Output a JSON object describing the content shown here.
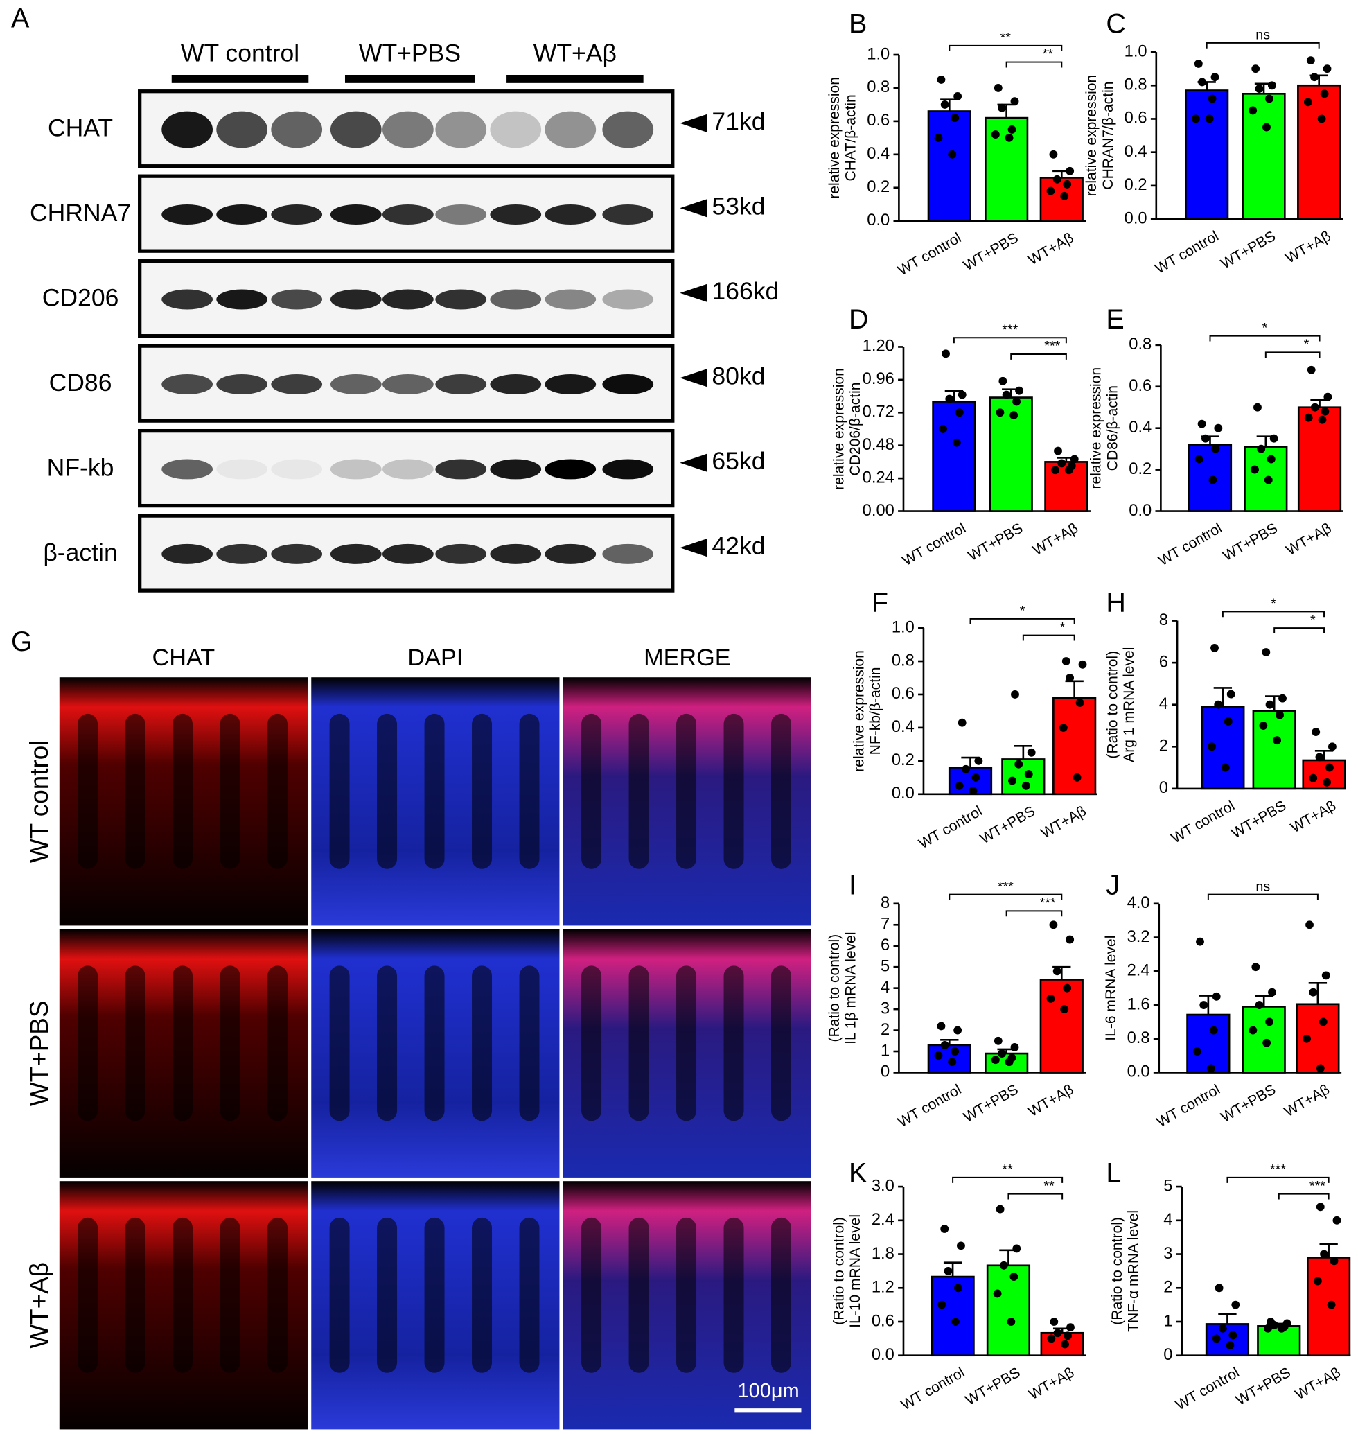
{
  "blot": {
    "label": "A",
    "groups": [
      "WT control",
      "WT+PBS",
      "WT+Aβ"
    ],
    "proteins": [
      {
        "name": "CHAT",
        "size": "71kd"
      },
      {
        "name": "CHRNA7",
        "size": "53kd"
      },
      {
        "name": "CD206",
        "size": "166kd"
      },
      {
        "name": "CD86",
        "size": "80kd"
      },
      {
        "name": "NF-kb",
        "size": "65kd"
      },
      {
        "name": "β-actin",
        "size": "42kd"
      }
    ]
  },
  "images": {
    "label": "G",
    "columns": [
      "CHAT",
      "DAPI",
      "MERGE"
    ],
    "rows": [
      "WT control",
      "WT+PBS",
      "WT+Aβ"
    ],
    "scale_bar": "100μm"
  },
  "chart_data": [
    {
      "type": "bar",
      "label": "B",
      "ylabel": [
        "CHAT/β-actin",
        "relative expression"
      ],
      "categories": [
        "WT control",
        "WT+PBS",
        "WT+Aβ"
      ],
      "colors": [
        "#0000ff",
        "#00ff00",
        "#ff0000"
      ],
      "values": [
        0.66,
        0.62,
        0.26
      ],
      "errors": [
        0.07,
        0.08,
        0.04
      ],
      "points": [
        [
          0.85,
          0.75,
          0.7,
          0.62,
          0.5,
          0.4
        ],
        [
          0.8,
          0.72,
          0.68,
          0.55,
          0.52,
          0.5
        ],
        [
          0.4,
          0.3,
          0.25,
          0.22,
          0.18,
          0.15
        ]
      ],
      "ylim": [
        0,
        1.0
      ],
      "yticks": [
        {
          "value": 0,
          "label": "0.0"
        },
        0.2,
        0.4,
        0.6,
        0.8,
        {
          "value": 1.0,
          "label": "1.0"
        }
      ],
      "comparisons": [
        {
          "groups": [
            0,
            2
          ],
          "label": "**"
        },
        {
          "groups": [
            1,
            2
          ],
          "label": "**"
        }
      ]
    },
    {
      "type": "bar",
      "label": "C",
      "ylabel": [
        "CHRAN7/β-actin",
        "relative expression"
      ],
      "categories": [
        "WT control",
        "WT+PBS",
        "WT+Aβ"
      ],
      "colors": [
        "#0000ff",
        "#00ff00",
        "#ff0000"
      ],
      "values": [
        0.77,
        0.75,
        0.8
      ],
      "errors": [
        0.05,
        0.06,
        0.06
      ],
      "points": [
        [
          0.93,
          0.85,
          0.82,
          0.72,
          0.6,
          0.6
        ],
        [
          0.9,
          0.8,
          0.78,
          0.72,
          0.65,
          0.55
        ],
        [
          0.95,
          0.9,
          0.85,
          0.75,
          0.7,
          0.6
        ]
      ],
      "ylim": [
        0,
        1.0
      ],
      "yticks": [
        {
          "value": 0,
          "label": "0.0"
        },
        0.2,
        0.4,
        0.6,
        0.8,
        {
          "value": 1.0,
          "label": "1.0"
        }
      ],
      "comparisons": [
        {
          "groups": [
            0,
            2
          ],
          "label": "ns"
        }
      ]
    },
    {
      "type": "bar",
      "label": "D",
      "ylabel": [
        "CD206/β-actin",
        "relative expression"
      ],
      "categories": [
        "WT control",
        "WT+PBS",
        "WT+Aβ"
      ],
      "colors": [
        "#0000ff",
        "#00ff00",
        "#ff0000"
      ],
      "values": [
        0.8,
        0.83,
        0.36
      ],
      "errors": [
        0.08,
        0.06,
        0.03
      ],
      "points": [
        [
          1.15,
          0.85,
          0.82,
          0.72,
          0.6,
          0.5
        ],
        [
          0.95,
          0.88,
          0.85,
          0.8,
          0.72,
          0.7
        ],
        [
          0.44,
          0.38,
          0.35,
          0.33,
          0.3,
          0.3
        ]
      ],
      "ylim": [
        0,
        1.2
      ],
      "yticks": [
        {
          "value": 0,
          "label": "0.00"
        },
        0.24,
        0.48,
        0.72,
        0.96,
        {
          "value": 1.2,
          "label": "1.20"
        }
      ],
      "comparisons": [
        {
          "groups": [
            0,
            2
          ],
          "label": "***"
        },
        {
          "groups": [
            1,
            2
          ],
          "label": "***"
        }
      ]
    },
    {
      "type": "bar",
      "label": "E",
      "ylabel": [
        "CD86/β-actin",
        "relative expression"
      ],
      "categories": [
        "WT control",
        "WT+PBS",
        "WT+Aβ"
      ],
      "colors": [
        "#0000ff",
        "#00ff00",
        "#ff0000"
      ],
      "values": [
        0.32,
        0.31,
        0.5
      ],
      "errors": [
        0.04,
        0.05,
        0.035
      ],
      "points": [
        [
          0.42,
          0.4,
          0.35,
          0.3,
          0.25,
          0.15
        ],
        [
          0.5,
          0.35,
          0.3,
          0.25,
          0.2,
          0.15
        ],
        [
          0.68,
          0.55,
          0.5,
          0.48,
          0.45,
          0.44
        ]
      ],
      "ylim": [
        0,
        0.8
      ],
      "yticks": [
        {
          "value": 0,
          "label": "0.0"
        },
        0.2,
        0.4,
        0.6,
        0.8
      ],
      "comparisons": [
        {
          "groups": [
            0,
            2
          ],
          "label": "*"
        },
        {
          "groups": [
            1,
            2
          ],
          "label": "*"
        }
      ]
    },
    {
      "type": "bar",
      "label": "F",
      "ylabel": [
        "NF-kb/β-actin",
        "relative expression"
      ],
      "categories": [
        "WT control",
        "WT+PBS",
        "WT+Aβ"
      ],
      "colors": [
        "#0000ff",
        "#00ff00",
        "#ff0000"
      ],
      "values": [
        0.16,
        0.21,
        0.58
      ],
      "errors": [
        0.06,
        0.08,
        0.1
      ],
      "points": [
        [
          0.43,
          0.2,
          0.15,
          0.1,
          0.05,
          0.02
        ],
        [
          0.6,
          0.25,
          0.18,
          0.12,
          0.08,
          0.05
        ],
        [
          0.8,
          0.78,
          0.7,
          0.55,
          0.4,
          0.1
        ]
      ],
      "ylim": [
        0,
        1.0
      ],
      "yticks": [
        {
          "value": 0,
          "label": "0.0"
        },
        0.2,
        0.4,
        0.6,
        0.8,
        {
          "value": 1.0,
          "label": "1.0"
        }
      ],
      "comparisons": [
        {
          "groups": [
            0,
            2
          ],
          "label": "*"
        },
        {
          "groups": [
            1,
            2
          ],
          "label": "*"
        }
      ]
    },
    {
      "type": "bar",
      "label": "H",
      "ylabel": [
        "Arg 1 mRNA level",
        "(Ratio to control)"
      ],
      "categories": [
        "WT control",
        "WT+PBS",
        "WT+Aβ"
      ],
      "colors": [
        "#0000ff",
        "#00ff00",
        "#ff0000"
      ],
      "values": [
        3.9,
        3.7,
        1.35
      ],
      "errors": [
        0.9,
        0.7,
        0.45
      ],
      "points": [
        [
          6.7,
          4.5,
          4,
          3.2,
          2,
          1
        ],
        [
          6.5,
          4.3,
          4,
          3.5,
          3,
          2.3
        ],
        [
          2.7,
          2,
          1.5,
          1,
          0.5,
          0.3
        ]
      ],
      "ylim": [
        0,
        8
      ],
      "yticks": [
        0,
        2,
        4,
        6,
        8
      ],
      "comparisons": [
        {
          "groups": [
            0,
            2
          ],
          "label": "*"
        },
        {
          "groups": [
            1,
            2
          ],
          "label": "*"
        }
      ]
    },
    {
      "type": "bar",
      "label": "I",
      "ylabel": [
        "IL 1β mRNA level",
        "(Ratio to control)"
      ],
      "categories": [
        "WT control",
        "WT+PBS",
        "WT+Aβ"
      ],
      "colors": [
        "#0000ff",
        "#00ff00",
        "#ff0000"
      ],
      "values": [
        1.3,
        0.9,
        4.4
      ],
      "errors": [
        0.25,
        0.2,
        0.6
      ],
      "points": [
        [
          2.2,
          2,
          1.3,
          1,
          0.8,
          0.5
        ],
        [
          1.5,
          1.2,
          0.9,
          0.7,
          0.6,
          0.5
        ],
        [
          7,
          6.3,
          4.8,
          4,
          3.5,
          3
        ]
      ],
      "ylim": [
        0,
        8
      ],
      "yticks": [
        0,
        1,
        2,
        3,
        4,
        5,
        6,
        7,
        8
      ],
      "comparisons": [
        {
          "groups": [
            0,
            2
          ],
          "label": "***"
        },
        {
          "groups": [
            1,
            2
          ],
          "label": "***"
        }
      ]
    },
    {
      "type": "bar",
      "label": "J",
      "ylabel": [
        "IL-6 mRNA level"
      ],
      "categories": [
        "WT control",
        "WT+PBS",
        "WT+Aβ"
      ],
      "colors": [
        "#0000ff",
        "#00ff00",
        "#ff0000"
      ],
      "values": [
        1.37,
        1.56,
        1.62
      ],
      "errors": [
        0.45,
        0.25,
        0.5
      ],
      "points": [
        [
          3.1,
          1.8,
          1.6,
          1,
          0.5,
          0.1
        ],
        [
          2.5,
          1.9,
          1.6,
          1.2,
          1,
          0.7
        ],
        [
          3.5,
          2.3,
          1.9,
          1.2,
          0.8,
          0.1
        ]
      ],
      "ylim": [
        0,
        4.0
      ],
      "yticks": [
        {
          "value": 0,
          "label": "0.0"
        },
        0.8,
        1.6,
        2.4,
        3.2,
        {
          "value": 4.0,
          "label": "4.0"
        }
      ],
      "comparisons": [
        {
          "groups": [
            0,
            2
          ],
          "label": "ns"
        }
      ]
    },
    {
      "type": "bar",
      "label": "K",
      "ylabel": [
        "IL-10 mRNA level",
        "(Ratio to control)"
      ],
      "categories": [
        "WT control",
        "WT+PBS",
        "WT+Aβ"
      ],
      "colors": [
        "#0000ff",
        "#00ff00",
        "#ff0000"
      ],
      "values": [
        1.4,
        1.6,
        0.4
      ],
      "errors": [
        0.25,
        0.27,
        0.08
      ],
      "points": [
        [
          2.25,
          1.95,
          1.5,
          1.2,
          0.9,
          0.6
        ],
        [
          2.6,
          1.9,
          1.6,
          1.4,
          1.1,
          0.6
        ],
        [
          0.6,
          0.5,
          0.4,
          0.35,
          0.3,
          0.2
        ]
      ],
      "ylim": [
        0,
        3.0
      ],
      "yticks": [
        {
          "value": 0,
          "label": "0.0"
        },
        0.6,
        1.2,
        1.8,
        2.4,
        {
          "value": 3.0,
          "label": "3.0"
        }
      ],
      "comparisons": [
        {
          "groups": [
            0,
            2
          ],
          "label": "**"
        },
        {
          "groups": [
            1,
            2
          ],
          "label": "**"
        }
      ]
    },
    {
      "type": "bar",
      "label": "L",
      "ylabel": [
        "TNF-α mRNA level",
        "(Ratio to control)"
      ],
      "categories": [
        "WT control",
        "WT+PBS",
        "WT+Aβ"
      ],
      "colors": [
        "#0000ff",
        "#00ff00",
        "#ff0000"
      ],
      "values": [
        0.93,
        0.87,
        2.9
      ],
      "errors": [
        0.3,
        0.07,
        0.4
      ],
      "points": [
        [
          2,
          1.5,
          0.8,
          0.6,
          0.5,
          0.3
        ],
        [
          1,
          0.95,
          0.9,
          0.85,
          0.8,
          0.8
        ],
        [
          4.4,
          4,
          3,
          2.8,
          2.2,
          1.5
        ]
      ],
      "ylim": [
        0,
        5
      ],
      "yticks": [
        0,
        1,
        2,
        3,
        4,
        5
      ],
      "comparisons": [
        {
          "groups": [
            0,
            2
          ],
          "label": "***"
        },
        {
          "groups": [
            1,
            2
          ],
          "label": "***"
        }
      ]
    }
  ]
}
